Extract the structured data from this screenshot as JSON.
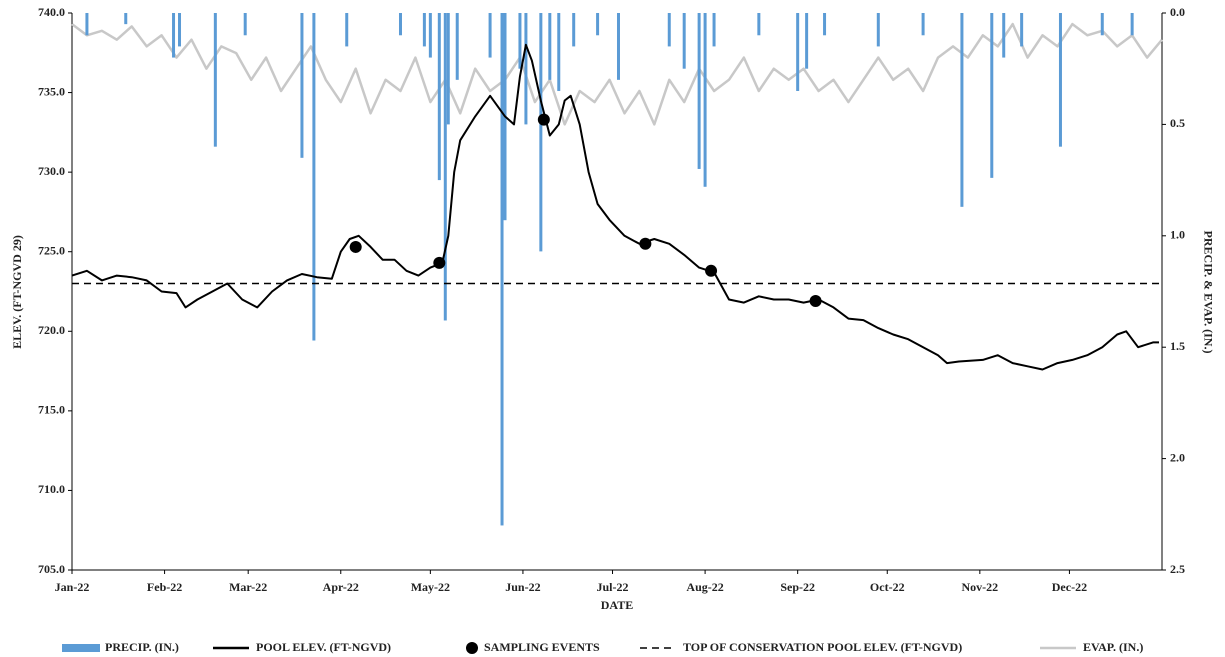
{
  "chart_data": {
    "type": "combo",
    "x_label": "DATE",
    "y_label": "ELEV. (FT-NGVD 29)",
    "y2_label": "PRECIP. & EVAP. (IN.)",
    "xlim": [
      0,
      365
    ],
    "xticks": [
      {
        "value": 0,
        "label": "Jan-22"
      },
      {
        "value": 31,
        "label": "Feb-22"
      },
      {
        "value": 59,
        "label": "Mar-22"
      },
      {
        "value": 90,
        "label": "Apr-22"
      },
      {
        "value": 120,
        "label": "May-22"
      },
      {
        "value": 151,
        "label": "Jun-22"
      },
      {
        "value": 181,
        "label": "Jul-22"
      },
      {
        "value": 212,
        "label": "Aug-22"
      },
      {
        "value": 243,
        "label": "Sep-22"
      },
      {
        "value": 273,
        "label": "Oct-22"
      },
      {
        "value": 304,
        "label": "Nov-22"
      },
      {
        "value": 334,
        "label": "Dec-22"
      }
    ],
    "ylim": [
      705,
      740
    ],
    "yticks": [
      {
        "value": 705,
        "label": "705.0"
      },
      {
        "value": 710,
        "label": "710.0"
      },
      {
        "value": 715,
        "label": "715.0"
      },
      {
        "value": 720,
        "label": "720.0"
      },
      {
        "value": 725,
        "label": "725.0"
      },
      {
        "value": 730,
        "label": "730.0"
      },
      {
        "value": 735,
        "label": "735.0"
      },
      {
        "value": 740,
        "label": "740.0"
      }
    ],
    "y2lim": [
      2.5,
      0
    ],
    "y2ticks": [
      {
        "value": 0,
        "label": "0.0"
      },
      {
        "value": 0.5,
        "label": "0.5"
      },
      {
        "value": 1,
        "label": "1.0"
      },
      {
        "value": 1.5,
        "label": "1.5"
      },
      {
        "value": 2,
        "label": "2.0"
      },
      {
        "value": 2.5,
        "label": "2.5"
      }
    ],
    "series": [
      {
        "name": "PRECIP. (IN.)",
        "type": "bar",
        "axis": "y2",
        "color": "#5b9bd5",
        "x": [
          5,
          18,
          34,
          36,
          48,
          58,
          77,
          81,
          92,
          110,
          118,
          120,
          123,
          125,
          126,
          129,
          140,
          144,
          145,
          150,
          152,
          157,
          160,
          163,
          168,
          176,
          183,
          200,
          205,
          210,
          212,
          215,
          230,
          243,
          246,
          252,
          270,
          285,
          298,
          308,
          312,
          318,
          331,
          345,
          355
        ],
        "values": [
          0.1,
          0.05,
          0.2,
          0.15,
          0.6,
          0.1,
          0.65,
          1.47,
          0.15,
          0.1,
          0.15,
          0.2,
          0.75,
          1.38,
          0.5,
          0.3,
          0.2,
          2.3,
          0.93,
          0.25,
          0.5,
          1.07,
          0.3,
          0.35,
          0.15,
          0.1,
          0.3,
          0.15,
          0.25,
          0.7,
          0.78,
          0.15,
          0.1,
          0.35,
          0.25,
          0.1,
          0.15,
          0.1,
          0.87,
          0.74,
          0.2,
          0.15,
          0.6,
          0.1,
          0.1
        ]
      },
      {
        "name": "POOL ELEV. (FT-NGVD)",
        "type": "line",
        "color": "#000000",
        "x": [
          0,
          5,
          10,
          15,
          20,
          25,
          30,
          35,
          38,
          42,
          47,
          52,
          57,
          62,
          67,
          72,
          77,
          82,
          87,
          90,
          93,
          96,
          100,
          104,
          108,
          112,
          116,
          120,
          124,
          126,
          128,
          130,
          135,
          140,
          145,
          148,
          150,
          152,
          154,
          157,
          160,
          163,
          165,
          167,
          170,
          173,
          176,
          180,
          185,
          190,
          195,
          200,
          205,
          210,
          215,
          220,
          225,
          230,
          235,
          240,
          245,
          250,
          255,
          260,
          265,
          270,
          275,
          280,
          285,
          290,
          293,
          297,
          305,
          310,
          315,
          320,
          325,
          330,
          335,
          340,
          345,
          350,
          353,
          357,
          362,
          364
        ],
        "values": [
          723.5,
          723.8,
          723.2,
          723.5,
          723.4,
          723.2,
          722.5,
          722.4,
          721.5,
          722.0,
          722.5,
          723.0,
          722.0,
          721.5,
          722.5,
          723.2,
          723.6,
          723.4,
          723.3,
          725.0,
          725.8,
          726.0,
          725.3,
          724.5,
          724.5,
          723.8,
          723.5,
          724.0,
          724.3,
          726,
          730,
          732,
          733.5,
          734.8,
          733.5,
          733,
          736,
          738,
          737,
          734.5,
          732.3,
          733,
          734.5,
          734.8,
          733,
          730,
          728,
          727,
          726,
          725.5,
          725.8,
          725.5,
          724.8,
          724,
          723.7,
          722,
          721.8,
          722.2,
          722,
          722,
          721.8,
          722,
          721.5,
          720.8,
          720.7,
          720.2,
          719.8,
          719.5,
          719,
          718.5,
          718,
          718.1,
          718.2,
          718.5,
          718,
          717.8,
          717.6,
          718,
          718.2,
          718.5,
          719,
          719.8,
          720,
          719,
          719.3,
          719.3
        ]
      },
      {
        "name": "SAMPLING EVENTS",
        "type": "scatter",
        "color": "#000000",
        "x": [
          95,
          123,
          158,
          192,
          214,
          249
        ],
        "values": [
          725.3,
          724.3,
          733.3,
          725.5,
          723.8,
          721.9
        ]
      },
      {
        "name": "TOP OF CONSERVATION POOL ELEV. (FT-NGVD)",
        "type": "hline",
        "color": "#000000",
        "value": 723
      },
      {
        "name": "EVAP. (IN.)",
        "type": "line",
        "axis": "y2",
        "color": "#c8c8c8",
        "x": [
          0,
          5,
          10,
          15,
          20,
          25,
          30,
          35,
          40,
          45,
          50,
          55,
          60,
          65,
          70,
          75,
          80,
          85,
          90,
          95,
          100,
          105,
          110,
          115,
          120,
          125,
          130,
          135,
          140,
          145,
          150,
          155,
          160,
          165,
          170,
          175,
          180,
          185,
          190,
          195,
          200,
          205,
          210,
          215,
          220,
          225,
          230,
          235,
          240,
          245,
          250,
          255,
          260,
          265,
          270,
          275,
          280,
          285,
          290,
          295,
          300,
          305,
          310,
          315,
          320,
          325,
          330,
          335,
          340,
          345,
          350,
          355,
          360,
          365
        ],
        "values": [
          0.05,
          0.1,
          0.08,
          0.12,
          0.06,
          0.15,
          0.1,
          0.2,
          0.12,
          0.25,
          0.15,
          0.18,
          0.3,
          0.2,
          0.35,
          0.25,
          0.15,
          0.3,
          0.4,
          0.25,
          0.45,
          0.3,
          0.35,
          0.2,
          0.4,
          0.3,
          0.45,
          0.25,
          0.35,
          0.3,
          0.2,
          0.4,
          0.3,
          0.5,
          0.35,
          0.4,
          0.3,
          0.45,
          0.35,
          0.5,
          0.3,
          0.4,
          0.25,
          0.35,
          0.3,
          0.2,
          0.35,
          0.25,
          0.3,
          0.25,
          0.35,
          0.3,
          0.4,
          0.3,
          0.2,
          0.3,
          0.25,
          0.35,
          0.2,
          0.15,
          0.2,
          0.1,
          0.15,
          0.05,
          0.2,
          0.1,
          0.15,
          0.05,
          0.1,
          0.08,
          0.15,
          0.1,
          0.2,
          0.12
        ]
      }
    ]
  }
}
